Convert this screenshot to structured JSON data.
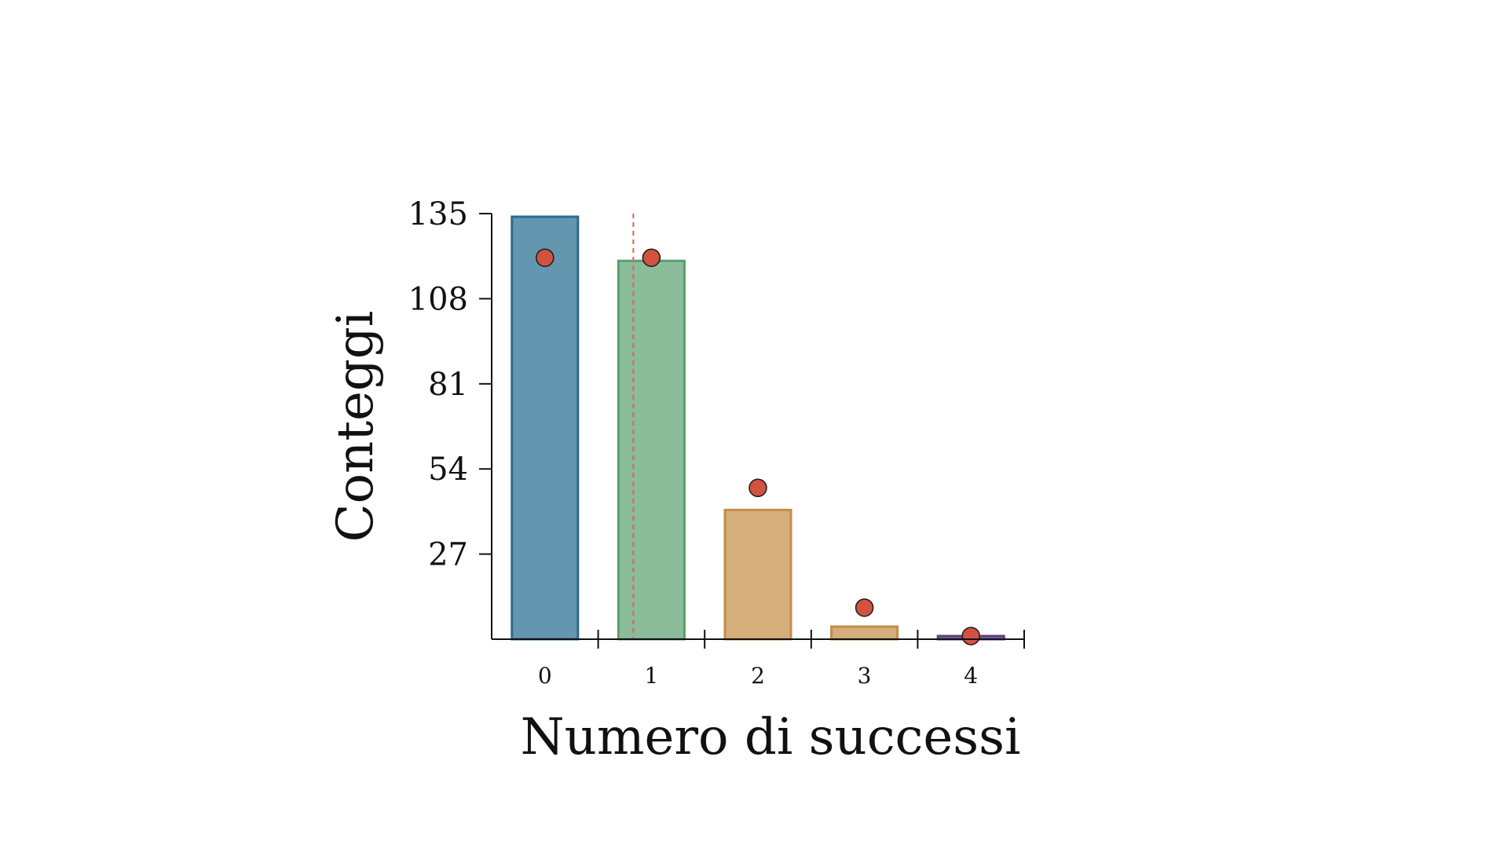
{
  "chart_data": {
    "type": "bar",
    "xlabel": "Numero di successi",
    "ylabel": "Conteggi",
    "categories": [
      "0",
      "1",
      "2",
      "3",
      "4"
    ],
    "values": [
      134,
      120,
      41,
      4,
      1
    ],
    "expected": [
      121,
      121,
      48,
      10,
      1
    ],
    "ylim": [
      0,
      135
    ],
    "yticks": [
      27,
      54,
      81,
      108,
      135
    ],
    "xlim": [
      -0.5,
      4.5
    ],
    "vline_x": 0.83,
    "grid": false,
    "legend": "none",
    "colors": {
      "bars": [
        "#6496b0",
        "#8bbd9a",
        "#d5ae7c",
        "#d5ae7c",
        "#8d6ea8"
      ],
      "bar_edges": [
        "#2e6a8e",
        "#5a9e6f",
        "#c38e48",
        "#c38e48",
        "#5b3f80"
      ],
      "marker_fill": "#d1533f",
      "marker_edge": "#1a1a1a",
      "vline": "#e8604c",
      "axis": "#111111"
    }
  }
}
